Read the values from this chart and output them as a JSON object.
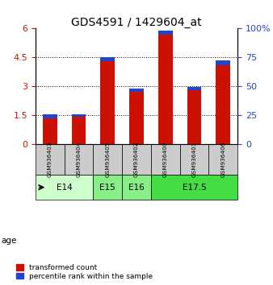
{
  "title": "GDS4591 / 1429604_at",
  "samples": [
    "GSM936403",
    "GSM936404",
    "GSM936405",
    "GSM936402",
    "GSM936400",
    "GSM936401",
    "GSM936406"
  ],
  "red_values": [
    1.35,
    1.4,
    4.3,
    2.7,
    5.7,
    2.8,
    4.1
  ],
  "blue_values": [
    0.2,
    0.15,
    0.2,
    0.2,
    0.2,
    0.15,
    0.25
  ],
  "age_groups": [
    {
      "label": "E14",
      "start": 0,
      "end": 1,
      "color": "#ccffcc"
    },
    {
      "label": "E15",
      "start": 2,
      "end": 2,
      "color": "#88ee88"
    },
    {
      "label": "E16",
      "start": 3,
      "end": 3,
      "color": "#88ee88"
    },
    {
      "label": "E17.5",
      "start": 4,
      "end": 6,
      "color": "#44dd44"
    }
  ],
  "ylim_left": [
    0,
    6
  ],
  "ylim_right": [
    0,
    100
  ],
  "yticks_left": [
    0,
    1.5,
    3,
    4.5,
    6
  ],
  "yticks_right": [
    0,
    25,
    50,
    75,
    100
  ],
  "yticklabels_right": [
    "0",
    "25",
    "50",
    "75",
    "100%"
  ],
  "red_color": "#cc1100",
  "blue_color": "#2244cc",
  "bar_width": 0.5,
  "sample_bg_color": "#cccccc",
  "legend_red_label": "transformed count",
  "legend_blue_label": "percentile rank within the sample",
  "title_fontsize": 10,
  "tick_fontsize": 8
}
